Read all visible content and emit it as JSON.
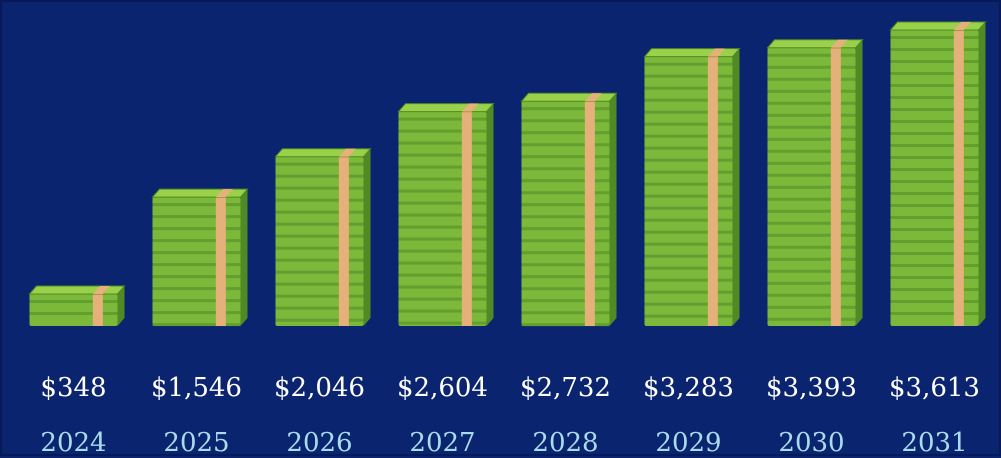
{
  "chart_data": {
    "type": "bar",
    "title": "",
    "xlabel": "",
    "ylabel": "",
    "categories": [
      "2024",
      "2025",
      "2026",
      "2027",
      "2028",
      "2029",
      "2030",
      "2031"
    ],
    "values": [
      348,
      1546,
      2046,
      2604,
      2732,
      3283,
      3393,
      3613
    ],
    "value_labels": [
      "$348",
      "$1,546",
      "$2,046",
      "$2,604",
      "$2,732",
      "$3,283",
      "$3,393",
      "$3,613"
    ],
    "ylim": [
      0,
      3613
    ],
    "grid": false,
    "legend": "none",
    "mark_style": "stacks of cash"
  },
  "colors": {
    "background": "#0b2470",
    "value_text": "#ffffff",
    "year_text": "#a9dcea",
    "bill_light": "#9bd14a",
    "bill_mid": "#7cb83a",
    "bill_dark": "#4f8a24",
    "band": "#e5b07a"
  }
}
